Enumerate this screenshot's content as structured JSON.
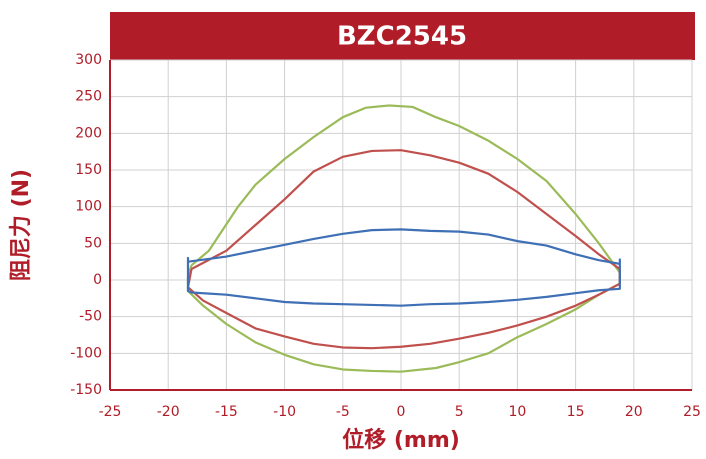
{
  "chart_data": {
    "type": "line",
    "title": "BZC2545",
    "x_label": "位移 (mm)",
    "y_label": "阻尼力 (N)",
    "xlim": [
      -25,
      25
    ],
    "xticks": [
      -25,
      -20,
      -15,
      -10,
      -5,
      0,
      5,
      10,
      15,
      20,
      25
    ],
    "ylim": [
      -150,
      300
    ],
    "yticks": [
      -150,
      -100,
      -50,
      0,
      50,
      100,
      150,
      200,
      250,
      300
    ],
    "grid": true,
    "series": [
      {
        "color": "#9bbb59",
        "x": [
          -18,
          -16.5,
          -14,
          -12.5,
          -10,
          -7.5,
          -5,
          -3,
          -1,
          1,
          3,
          5,
          7.5,
          10,
          12.5,
          15,
          17,
          18.8,
          18.8,
          17,
          15,
          12.5,
          10,
          7.5,
          5,
          3,
          0,
          -2.5,
          -5,
          -7.5,
          -10,
          -12.5,
          -15,
          -17,
          -18.3,
          -18.3,
          -18
        ],
        "values": [
          20,
          40,
          100,
          130,
          165,
          195,
          222,
          235,
          238,
          236,
          222,
          210,
          190,
          165,
          135,
          90,
          50,
          10,
          -5,
          -20,
          -40,
          -60,
          -78,
          -100,
          -112,
          -120,
          -125,
          -124,
          -122,
          -115,
          -102,
          -85,
          -60,
          -35,
          -15,
          5,
          20
        ]
      },
      {
        "color": "#c0504d",
        "x": [
          -18,
          -15,
          -12.5,
          -10,
          -7.5,
          -5,
          -2.5,
          0,
          2.5,
          5,
          7.5,
          10,
          12.5,
          15,
          17,
          18.8,
          18.8,
          17,
          15,
          12.5,
          10,
          7.5,
          5,
          2.5,
          0,
          -2.5,
          -5,
          -7.5,
          -10,
          -12.5,
          -15,
          -17,
          -18.3,
          -18
        ],
        "values": [
          15,
          40,
          75,
          110,
          148,
          168,
          176,
          177,
          170,
          160,
          145,
          120,
          90,
          60,
          35,
          15,
          -5,
          -20,
          -35,
          -50,
          -62,
          -72,
          -80,
          -87,
          -91,
          -93,
          -92,
          -87,
          -77,
          -66,
          -45,
          -28,
          -10,
          15
        ]
      },
      {
        "color": "#3f6fb5",
        "x": [
          -18.3,
          -15,
          -12.5,
          -10,
          -7.5,
          -5,
          -2.5,
          0,
          2.5,
          5,
          7.5,
          10,
          12.5,
          15,
          17,
          18.8,
          18.8,
          18.8,
          17,
          15,
          12.5,
          10,
          7.5,
          5,
          2.5,
          0,
          -2.5,
          -5,
          -7.5,
          -10,
          -12.5,
          -15,
          -18,
          -18.3,
          -18.3,
          -18.3
        ],
        "values": [
          25,
          32,
          40,
          48,
          56,
          63,
          68,
          69,
          67,
          66,
          62,
          53,
          47,
          35,
          27,
          22,
          28,
          -12,
          -14,
          -18,
          -23,
          -27,
          -30,
          -32,
          -33,
          -35,
          -34,
          -33,
          -32,
          -30,
          -25,
          -20,
          -17,
          -15,
          30,
          25
        ]
      }
    ]
  }
}
